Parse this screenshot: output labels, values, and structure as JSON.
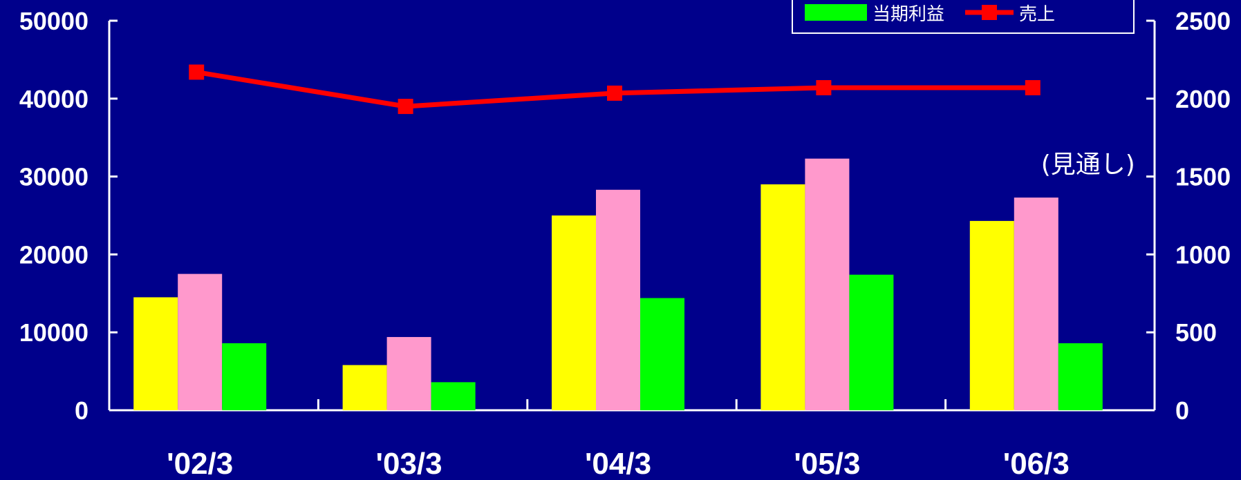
{
  "chart_data": {
    "type": "bar",
    "categories": [
      "'02/3",
      "'03/3",
      "'04/3",
      "'05/3",
      "'06/3"
    ],
    "series": [
      {
        "values": [
          14500,
          5800,
          25000,
          29000,
          24300
        ],
        "color": "#ffff00",
        "axis": "left"
      },
      {
        "values": [
          17500,
          9400,
          28300,
          32300,
          27300
        ],
        "color": "#ff99cc",
        "axis": "left"
      },
      {
        "name": "当期利益",
        "values": [
          430,
          180,
          720,
          870,
          430
        ],
        "color": "#00ff00",
        "axis": "right",
        "legend": true
      },
      {
        "name": "売上",
        "type": "line",
        "marker": "square",
        "values": [
          2170,
          1950,
          2035,
          2070,
          2070
        ],
        "color": "#ff0000",
        "axis": "right",
        "legend": true
      }
    ],
    "yleft": {
      "min": 0,
      "max": 50000,
      "ticks": [
        0,
        10000,
        20000,
        30000,
        40000,
        50000
      ]
    },
    "yright": {
      "min": 0,
      "max": 2500,
      "ticks": [
        0,
        500,
        1000,
        1500,
        2000,
        2500
      ]
    },
    "annotations": [
      {
        "text": "(見通し)",
        "category": "'06/3"
      }
    ],
    "legend_position": "top-right",
    "grid": false,
    "background": "#00008b",
    "axis_color": "#ffffff"
  }
}
